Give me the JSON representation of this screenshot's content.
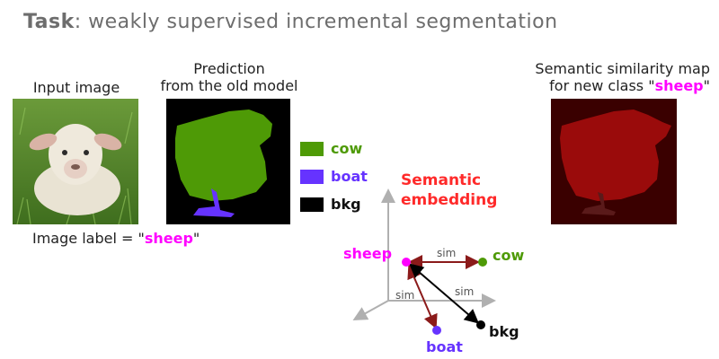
{
  "title": {
    "bold": "Task",
    "rest": ": weakly supervised incremental segmentation"
  },
  "input_image": {
    "caption": "Input image"
  },
  "prediction": {
    "caption_line1": "Prediction",
    "caption_line2": "from the old model"
  },
  "image_label": {
    "prefix": "Image label = \"",
    "value": "sheep",
    "suffix": "\""
  },
  "legend": {
    "items": [
      {
        "label": "cow",
        "color": "#4e9a06"
      },
      {
        "label": "boat",
        "color": "#6633ff"
      },
      {
        "label": "bkg",
        "color": "#000000"
      }
    ]
  },
  "semantic_embedding": {
    "line1": "Semantic",
    "line2": "embedding"
  },
  "similarity_map": {
    "caption_line1": "Semantic similarity map",
    "caption_line2_prefix": "for new class \"",
    "caption_line2_value": "sheep",
    "caption_line2_suffix": "\""
  },
  "embedding_points": {
    "sheep": "sheep",
    "cow": "cow",
    "boat": "boat",
    "bkg": "bkg",
    "sim1": "sim",
    "sim2": "sim",
    "sim3": "sim"
  },
  "colors": {
    "sheep": "#ff00ff",
    "cow": "#4e9a06",
    "boat": "#6633ff",
    "bkg": "#000000",
    "arrow": "#8b1a1a",
    "simmap_bg": "#3a0000",
    "simmap_fg": "#9a0b0b"
  }
}
